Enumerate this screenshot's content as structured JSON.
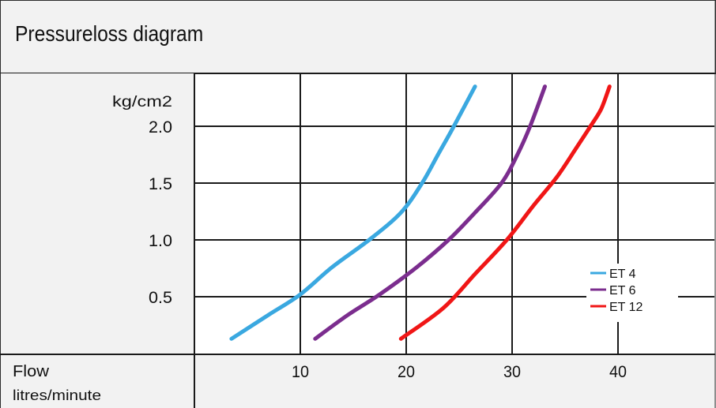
{
  "header": {
    "title": "Pressureloss diagram"
  },
  "footer": {
    "flow_label": "Flow",
    "unit_label": "litres/minute"
  },
  "chart_data": {
    "type": "line",
    "title": "Pressureloss diagram",
    "xlabel": "Flow litres/minute",
    "ylabel": "kg/cm2",
    "x_ticks": [
      10,
      20,
      30,
      40
    ],
    "y_ticks": [
      0.5,
      1.0,
      1.5,
      2.0
    ],
    "y_tick_labels": [
      "0.5",
      "1.0",
      "1.5",
      "2.0"
    ],
    "xlim": [
      0,
      48
    ],
    "ylim": [
      0,
      2.4
    ],
    "grid": true,
    "legend_position": "right",
    "series": [
      {
        "name": "ET 4",
        "color": "#3aa8e0",
        "x": [
          3.5,
          7,
          10,
          13,
          16.5,
          19.5,
          21.5,
          23,
          24.5,
          26.5
        ],
        "y": [
          0.13,
          0.34,
          0.52,
          0.76,
          1.0,
          1.24,
          1.5,
          1.75,
          2.0,
          2.35
        ]
      },
      {
        "name": "ET 6",
        "color": "#7b2d8e",
        "x": [
          11.4,
          14.5,
          17.5,
          21,
          24,
          26.5,
          29,
          30.5,
          31.7,
          33.1
        ],
        "y": [
          0.13,
          0.34,
          0.52,
          0.76,
          1.0,
          1.24,
          1.5,
          1.75,
          2.0,
          2.35
        ]
      },
      {
        "name": "ET 12",
        "color": "#f01616",
        "x": [
          19.5,
          23.5,
          26.5,
          29.5,
          32,
          34.2,
          36,
          37.4,
          38.4,
          39.2
        ],
        "y": [
          0.13,
          0.4,
          0.7,
          1.0,
          1.3,
          1.55,
          1.8,
          2.0,
          2.15,
          2.35
        ]
      }
    ]
  }
}
